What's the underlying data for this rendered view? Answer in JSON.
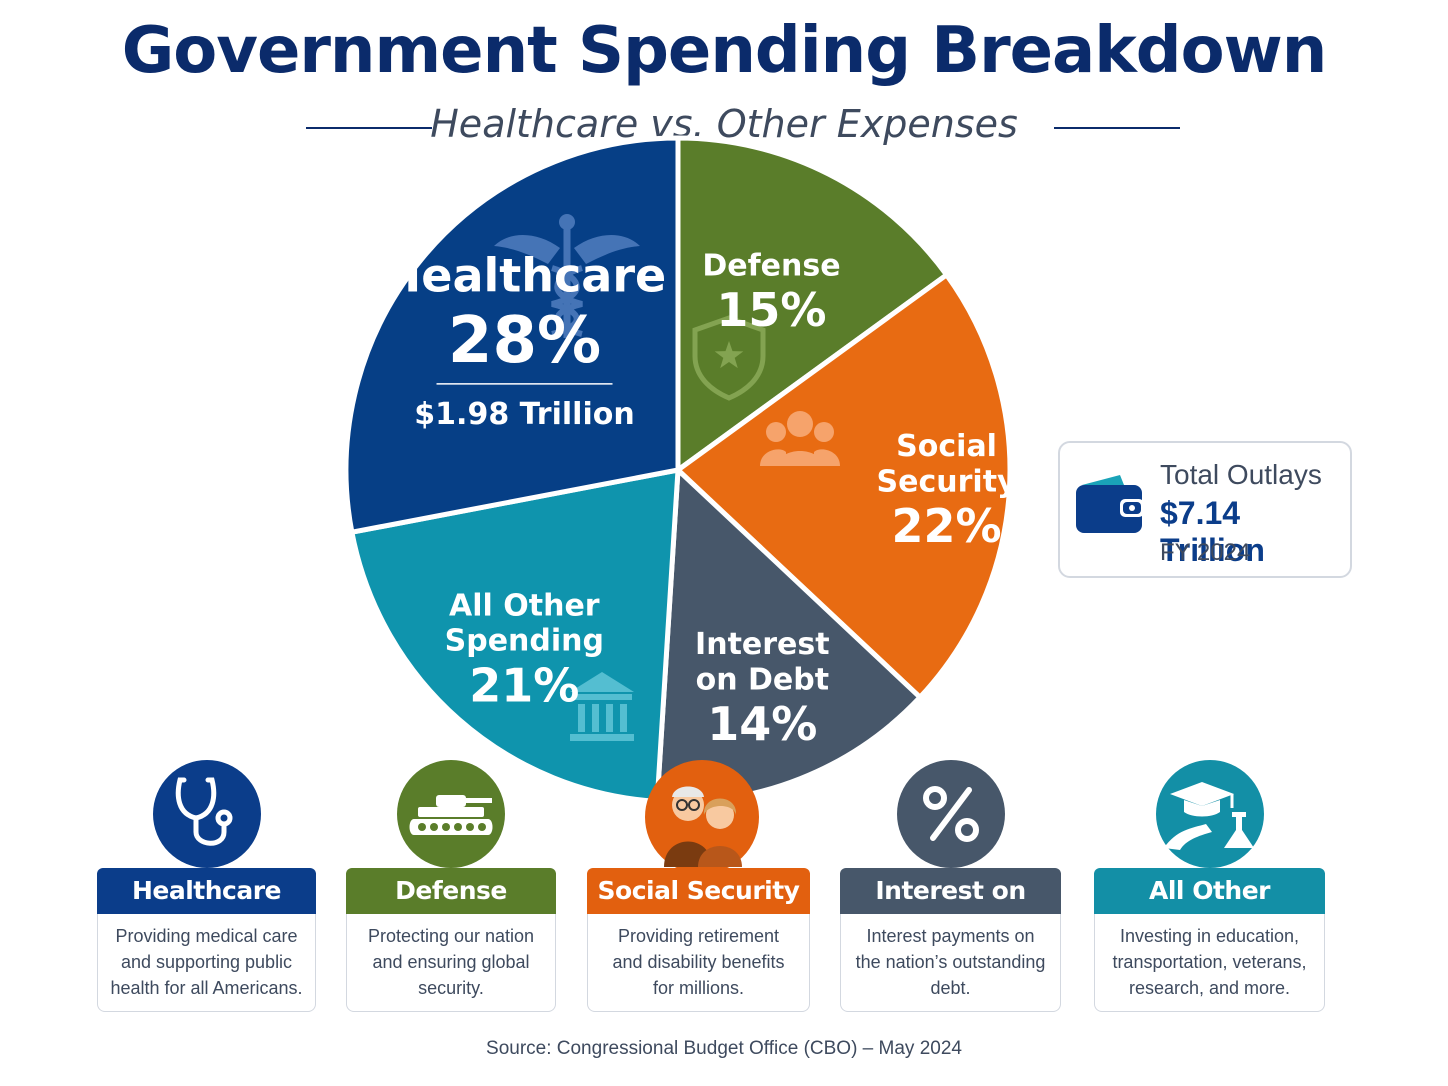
{
  "title": "Government Spending Breakdown",
  "subtitle": "Healthcare vs. Other Expenses",
  "chart_data": {
    "type": "pie",
    "slices": [
      {
        "key": "healthcare",
        "label": [
          "Healthcare"
        ],
        "percent_label": "28%",
        "value": 28,
        "amount": "$1.98 Trillion",
        "color": "#063f86",
        "icon": "caduceus-icon"
      },
      {
        "key": "defense",
        "label": [
          "Defense"
        ],
        "percent_label": "15%",
        "value": 15,
        "color": "#5a7d2a",
        "icon": "shield-star-icon"
      },
      {
        "key": "social_security",
        "label": [
          "Social",
          "Security"
        ],
        "percent_label": "22%",
        "value": 22,
        "color": "#e86b12",
        "icon": "people-icon"
      },
      {
        "key": "interest",
        "label": [
          "Interest",
          "on Debt"
        ],
        "percent_label": "14%",
        "value": 14,
        "color": "#47576a",
        "icon": ""
      },
      {
        "key": "other",
        "label": [
          "All Other",
          "Spending"
        ],
        "percent_label": "21%",
        "value": 21,
        "color": "#0f94ad",
        "icon": "bank-icon"
      }
    ]
  },
  "outlays": {
    "label": "Total Outlays",
    "amount": "$7.14 Trillion",
    "year": "FY 2024"
  },
  "cards": [
    {
      "key": "healthcare",
      "title": "Healthcare",
      "desc": [
        "Providing medical care",
        "and supporting public",
        "health for all Americans."
      ],
      "color": "#0b3d8a",
      "icon": "stethoscope-icon"
    },
    {
      "key": "defense",
      "title": "Defense",
      "desc": [
        "Protecting our nation",
        "and ensuring global",
        "security."
      ],
      "color": "#5a7d2a",
      "icon": "tank-icon"
    },
    {
      "key": "social_security",
      "title": "Social Security",
      "desc": [
        "Providing retirement",
        "and disability benefits",
        "for millions."
      ],
      "color": "#e2600f",
      "icon": "seniors-icon"
    },
    {
      "key": "interest",
      "title": "Interest on Debt",
      "desc": [
        "Interest payments on",
        "the nation’s outstanding",
        "debt."
      ],
      "color": "#47576a",
      "icon": "percent-icon"
    },
    {
      "key": "other",
      "title": "All Other Spending",
      "desc": [
        "Investing in education,",
        "transportation, veterans,",
        "research, and more."
      ],
      "color": "#138fa6",
      "icon": "graduation-road-flask-icon"
    }
  ],
  "source": "Source:  Congressional Budget Office (CBO) – May 2024"
}
